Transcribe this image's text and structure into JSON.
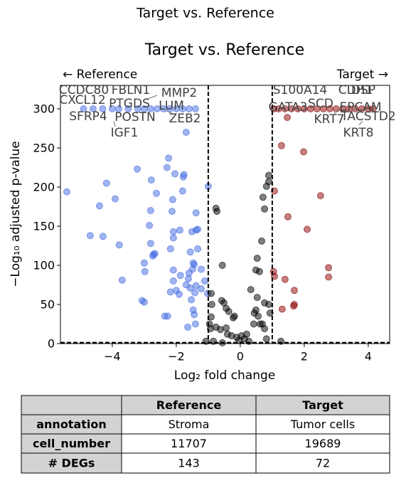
{
  "chart_data": {
    "type": "scatter",
    "suptitle": "Target vs. Reference",
    "title": "Target vs. Reference",
    "x_label": "Log₂ fold change",
    "y_label": "−Log₁₀ adjusted p-value",
    "direction_labels": [
      "← Reference",
      "Target →"
    ],
    "xlim": [
      -5.62,
      4.67
    ],
    "ylim": [
      0,
      330
    ],
    "xticks": [
      {
        "value": -4,
        "label": "−4"
      },
      {
        "value": -2,
        "label": "−2"
      },
      0,
      2,
      4
    ],
    "yticks": [
      0,
      50,
      100,
      150,
      200,
      250,
      300
    ],
    "thresholds": {
      "x": [
        -1,
        1
      ],
      "y": 1.3
    },
    "series": [
      {
        "color": "#4169e1",
        "x": [
          -4.9,
          -4.6,
          -4.3,
          -4.0,
          -3.8,
          -3.5,
          -3.2,
          -3.0,
          -2.8,
          -2.6,
          -2.4,
          -2.2,
          -2.0,
          -1.8,
          -1.6,
          -1.4,
          -5.42,
          -4.4,
          -4.18,
          -4.69,
          -4.29,
          -3.91,
          -3.69,
          -3.78,
          -3.22,
          -2.78,
          -2.8,
          -2.84,
          -2.71,
          -3.07,
          -3.0,
          -3.0,
          -2.98,
          -2.8,
          -2.67,
          -2.73,
          -2.62,
          -2.29,
          -2.04,
          -2.24,
          -2.11,
          -2.13,
          -2.09,
          -2.09,
          -2.18,
          -2.36,
          -2.27,
          -2.18,
          -2.09,
          -2.09,
          -2.0,
          -1.91,
          -1.87,
          -1.78,
          -1.76,
          -1.8,
          -1.69,
          -1.89,
          -1.56,
          -1.6,
          -1.62,
          -1.69,
          -1.44,
          -1.47,
          -1.49,
          -1.42,
          -1.56,
          -1.44,
          -1.51,
          -1.38,
          -1.38,
          -1.33,
          -1.33,
          -1.47,
          -1.38,
          -1.64,
          -1.4,
          -1.22,
          -1.22,
          -1.11,
          -1.02,
          -1.0,
          -1.53
        ],
        "y": [
          300,
          300,
          300,
          300,
          300,
          300,
          300,
          300,
          300,
          300,
          300,
          300,
          300,
          300,
          300,
          300,
          194,
          176,
          205,
          138,
          137,
          185,
          81,
          126,
          223,
          209,
          170,
          151,
          114,
          55,
          53,
          103,
          92,
          128,
          115,
          112,
          192,
          225,
          217,
          237,
          184,
          169,
          143,
          135,
          121,
          35,
          35,
          66,
          80,
          94,
          68,
          63,
          87,
          213,
          216,
          195,
          270,
          145,
          71,
          90,
          83,
          75,
          37,
          43,
          95,
          65,
          117,
          101,
          143,
          167,
          145,
          146,
          121,
          103,
          74,
          21,
          25,
          70,
          95,
          80,
          64,
          201,
          56
        ]
      },
      {
        "color": "#8b0000",
        "x": [
          1.05,
          1.2,
          1.4,
          1.6,
          1.8,
          2.0,
          2.2,
          2.4,
          2.6,
          2.8,
          3.0,
          3.2,
          3.4,
          3.6,
          3.8,
          4.0,
          4.15,
          1.07,
          1.29,
          1.98,
          1.49,
          2.09,
          2.51,
          1.04,
          1.07,
          1.4,
          1.69,
          1.69,
          1.67,
          1.31,
          2.76,
          2.76,
          1.47
        ],
        "y": [
          300,
          300,
          300,
          300,
          300,
          300,
          300,
          300,
          300,
          300,
          300,
          300,
          300,
          300,
          300,
          300,
          300,
          195,
          253,
          245,
          162,
          146,
          189,
          92,
          86,
          82,
          68,
          50,
          48,
          44,
          97,
          85,
          289
        ]
      },
      {
        "color": "#000000",
        "x": [
          -0.91,
          -0.89,
          -0.91,
          -0.96,
          -0.93,
          -0.76,
          -0.73,
          -0.56,
          -0.58,
          -0.51,
          -0.44,
          -0.36,
          -0.18,
          -0.22,
          -0.76,
          -0.62,
          -0.44,
          -0.4,
          -0.27,
          -0.11,
          0.04,
          0.13,
          0.2,
          0.27,
          -0.04,
          0.33,
          0.44,
          0.49,
          0.56,
          0.49,
          0.53,
          0.6,
          0.67,
          0.76,
          0.71,
          0.82,
          0.89,
          0.89,
          0.69,
          0.76,
          0.62,
          0.42,
          0.93,
          0.89,
          0.76,
          0.53,
          -0.56,
          -0.84,
          -1.07,
          1.27,
          0.82
        ],
        "y": [
          64,
          50,
          34,
          25,
          19,
          173,
          169,
          100,
          55,
          52,
          45,
          41,
          35,
          33,
          21,
          18,
          20,
          12,
          10,
          8,
          10,
          6,
          12,
          3,
          4,
          69,
          39,
          43,
          35,
          94,
          109,
          92,
          131,
          172,
          187,
          201,
          215,
          207,
          25,
          19,
          25,
          25,
          39,
          50,
          52,
          59,
          1,
          3,
          3,
          3,
          6
        ]
      }
    ],
    "gene_labels": [
      "CCDC80",
      "FBLN1",
      "MMP2",
      "CXCL12",
      "PTGDS",
      "LUM",
      "SFRP4",
      "POSTN",
      "ZEB2",
      "IGF1",
      "S100A14",
      "CDH1",
      "DSP",
      "GATA3",
      "SCD",
      "EPCAM",
      "KRT7",
      "TACSTD2",
      "KRT8"
    ]
  },
  "table": {
    "columns": [
      "Reference",
      "Target"
    ],
    "rows": [
      {
        "label": "annotation",
        "cells": [
          "Stroma",
          "Tumor cells"
        ]
      },
      {
        "label": "cell_number",
        "cells": [
          11707,
          19689
        ]
      },
      {
        "label": "# DEGs",
        "cells": [
          143,
          72
        ]
      }
    ]
  }
}
